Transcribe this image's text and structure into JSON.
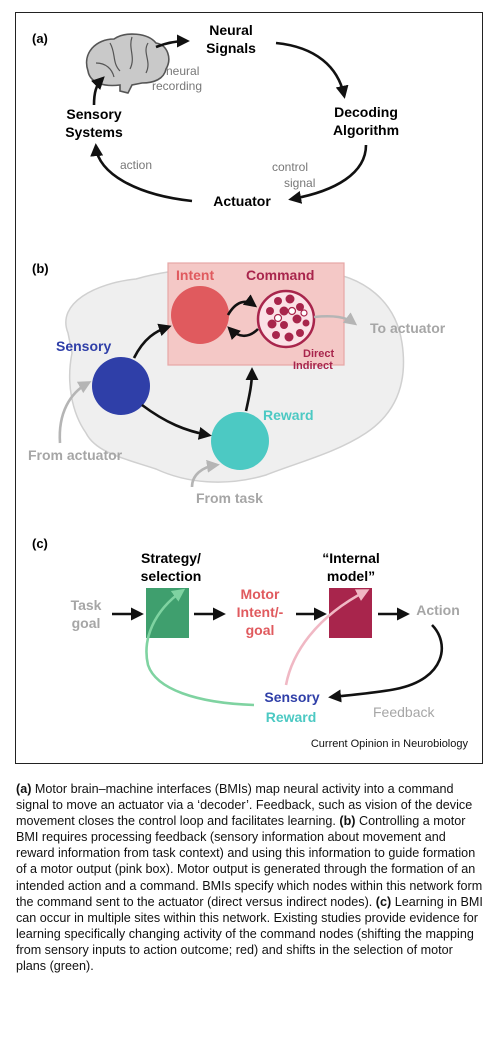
{
  "panel_a": {
    "label": "(a)",
    "nodes": {
      "neural_signals": [
        "Neural",
        "Signals"
      ],
      "decoding_algorithm": [
        "Decoding",
        "Algorithm"
      ],
      "actuator": "Actuator",
      "sensory_systems": [
        "Sensory",
        "Systems"
      ]
    },
    "edge_labels": {
      "neural_recording": [
        "neural",
        "recording"
      ],
      "control_signal": [
        "control",
        "signal"
      ],
      "action": "action"
    }
  },
  "panel_b": {
    "label": "(b)",
    "labels": {
      "intent": "Intent",
      "command": "Command",
      "direct": "Direct",
      "indirect": "Indirect",
      "sensory": "Sensory",
      "reward": "Reward",
      "to_actuator": "To actuator",
      "from_actuator": "From actuator",
      "from_task": "From task"
    }
  },
  "panel_c": {
    "label": "(c)",
    "labels": {
      "strategy": [
        "Strategy/",
        "selection"
      ],
      "internal_model": [
        "“Internal",
        "model”"
      ],
      "task_goal": [
        "Task",
        "goal"
      ],
      "motor_intent_goal": [
        "Motor",
        "Intent/-",
        "goal"
      ],
      "action": "Action",
      "sensory": "Sensory",
      "reward": "Reward",
      "feedback": "Feedback"
    }
  },
  "source": "Current Opinion in Neurobiology",
  "caption": [
    {
      "label": "(a)",
      "text": " Motor brain–machine interfaces (BMIs) map neural activity into a command signal to move an actuator via a ‘decoder’. Feedback, such as vision of the device movement closes the control loop and facilitates learning. "
    },
    {
      "label": "(b)",
      "text": " Controlling a motor BMI requires processing feedback (sensory information about movement and reward information from task context) and using this information to guide formation of a motor output (pink box). Motor output is generated through the formation of an intended action and a command. BMIs specify which nodes within this network form the command sent to the actuator (direct versus indirect nodes). "
    },
    {
      "label": "(c)",
      "text": " Learning in BMI can occur in multiple sites within this network. Existing studies provide evidence for learning specifically changing activity of the command nodes (shifting the mapping from sensory inputs to action outcome; red) and shifts in the selection of motor plans (green)."
    }
  ],
  "colors": {
    "intent": "#e05a5e",
    "command": "#a8254c",
    "sensory": "#2f3fa8",
    "reward": "#4cc9c3",
    "strategy_box": "#3f9f6e",
    "model_box": "#a8254c",
    "pink_box": "#f4c8c6",
    "grey_text": "#a6a6a6",
    "green_arrow": "#7fd3a1",
    "pink_arrow": "#f0b8c4"
  }
}
